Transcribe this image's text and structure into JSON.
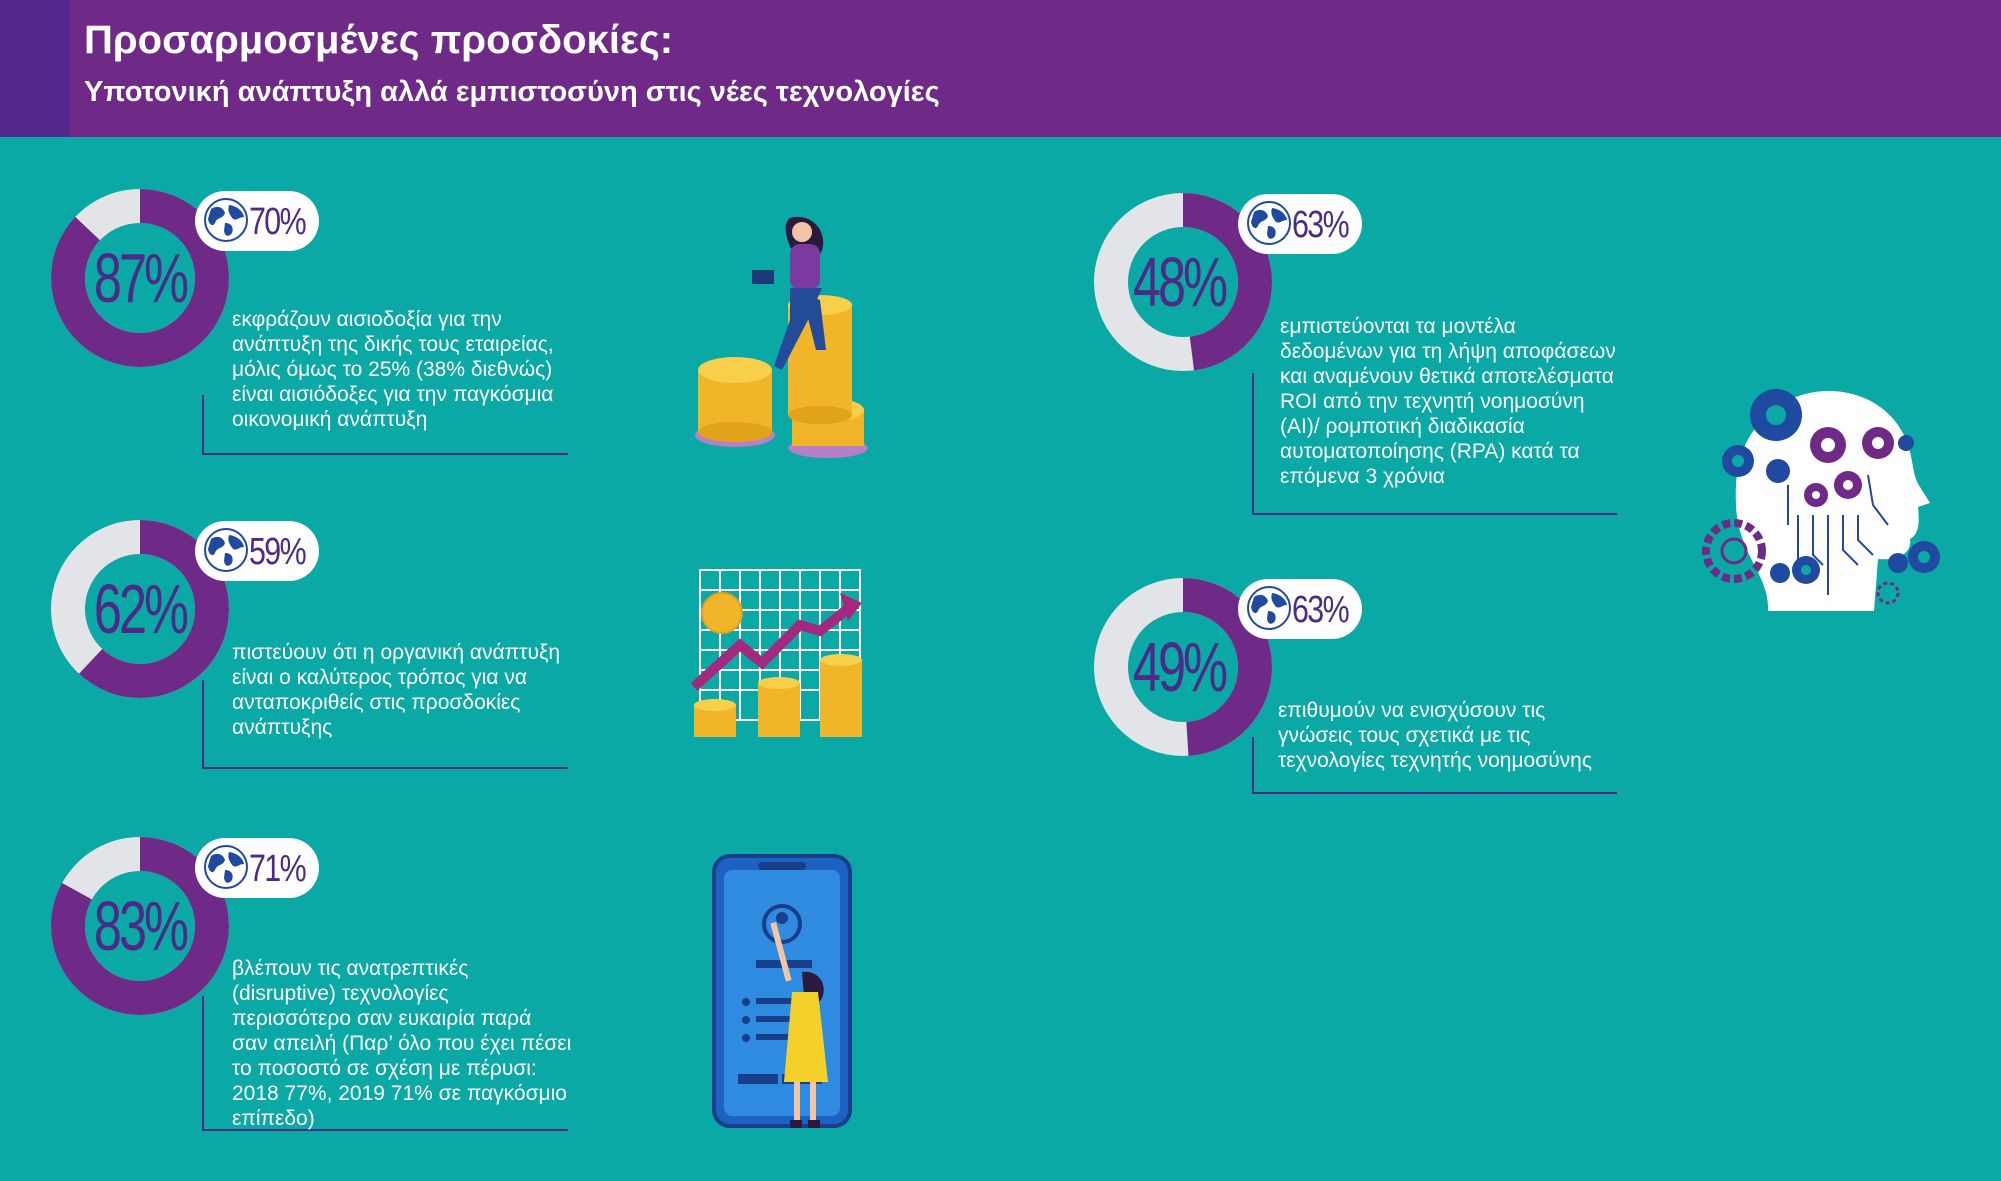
{
  "header": {
    "title": "Προσαρμοσμένες προσδοκίες:",
    "subtitle": "Υποτονική ανάπτυξη αλλά εμπιστοσύνη στις νέες τεχνολογίες"
  },
  "colors": {
    "background": "#0aa9a5",
    "header": "#6e2a86",
    "donut_fill": "#6e2a86",
    "donut_track": "#e3e4e8",
    "text_dark": "#4c2a86"
  },
  "stats": [
    {
      "value": 87,
      "label": "87%",
      "global_label": "70%",
      "description": "εκφράζουν αισιοδοξία για την ανάπτυξη της δικής τους εταιρείας, μόλις όμως το 25% (38% διεθνώς) είναι αισιόδοξες για την παγκόσμια οικονομική ανάπτυξη"
    },
    {
      "value": 62,
      "label": "62%",
      "global_label": "59%",
      "description": "πιστεύουν ότι η οργανική ανάπτυξη είναι ο καλύτερος τρόπος για να ανταποκριθείς στις προσδοκίες ανάπτυξης"
    },
    {
      "value": 83,
      "label": "83%",
      "global_label": "71%",
      "description": "βλέπουν τις ανατρεπτικές (disruptive) τεχνολογίες περισσότερο σαν ευκαιρία παρά σαν απειλή (Παρ’ όλο που έχει πέσει το ποσοστό σε σχέση με πέρυσι: 2018 77%, 2019 71% σε παγκόσμιο επίπεδο)"
    },
    {
      "value": 48,
      "label": "48%",
      "global_label": "63%",
      "description": "εμπιστεύονται τα μοντέλα δεδομένων για τη λήψη αποφάσεων και αναμένουν θετικά αποτελέσματα ROI από την τεχνητή νοημοσύνη (AI)/ ρομποτική διαδικασία αυτοματοποίησης (RPA) κατά τα επόμενα 3 χρόνια"
    },
    {
      "value": 49,
      "label": "49%",
      "global_label": "63%",
      "description": "επιθυμούν να ενισχύσουν τις γνώσεις τους σχετικά με τις τεχνολογίες τεχνητής νοημοσύνης"
    }
  ],
  "icons": [
    "globe-icon",
    "coins-woman-illustration",
    "growth-chart-illustration",
    "phone-woman-illustration",
    "ai-head-gears-illustration"
  ]
}
